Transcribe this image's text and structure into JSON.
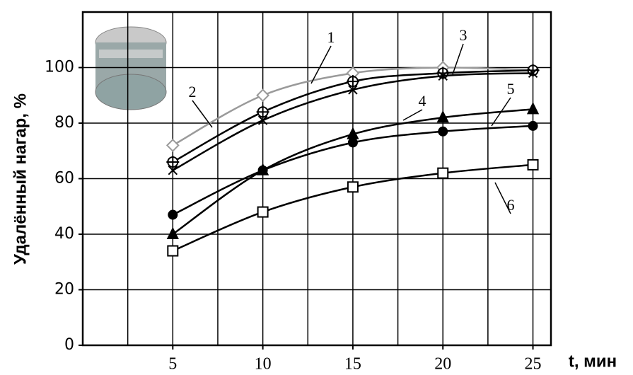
{
  "chart_data": {
    "type": "line",
    "y_label": "Удалённый нагар, %",
    "x_label": "t, мин",
    "x": [
      5,
      10,
      15,
      20,
      25
    ],
    "series": [
      {
        "name": "1",
        "color": "#9a9a9a",
        "marker": "diamond",
        "values": [
          72,
          90,
          98,
          100,
          99
        ]
      },
      {
        "name": "2",
        "color": "#000000",
        "marker": "circle-cross",
        "values": [
          66,
          84,
          95,
          98,
          99
        ]
      },
      {
        "name": "3",
        "color": "#000000",
        "marker": "cross",
        "values": [
          63,
          81,
          92,
          97,
          98
        ]
      },
      {
        "name": "4",
        "color": "#000000",
        "marker": "triangle",
        "values": [
          40,
          63,
          76,
          82,
          85
        ]
      },
      {
        "name": "5",
        "color": "#000000",
        "marker": "circle",
        "values": [
          47,
          63,
          73,
          77,
          79
        ]
      },
      {
        "name": "6",
        "color": "#000000",
        "marker": "square",
        "values": [
          34,
          48,
          57,
          62,
          65
        ]
      }
    ],
    "xlim": [
      0,
      26
    ],
    "ylim": [
      0,
      120
    ],
    "xticks": [
      5,
      10,
      15,
      20,
      25
    ],
    "yticks": [
      0,
      20,
      40,
      60,
      80,
      100
    ],
    "xgrid": [
      2.5,
      5,
      7.5,
      10,
      12.5,
      15,
      17.5,
      20,
      22.5,
      25
    ],
    "ygrid": [
      20,
      40,
      60,
      80,
      100
    ],
    "grid": true
  }
}
